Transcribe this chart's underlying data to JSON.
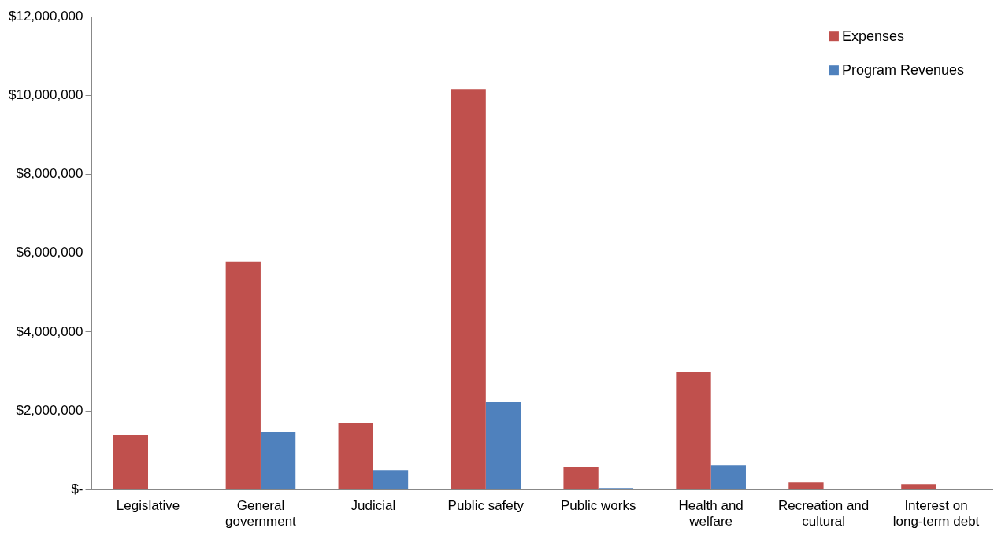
{
  "chart_data": {
    "type": "bar",
    "categories": [
      "Legislative",
      "General government",
      "Judicial",
      "Public safety",
      "Public works",
      "Health and welfare",
      "Recreation and cultural",
      "Interest on long-term debt"
    ],
    "series": [
      {
        "name": "Expenses",
        "color": "#c0504d",
        "values": [
          1380000,
          5780000,
          1680000,
          10160000,
          580000,
          2980000,
          180000,
          140000
        ]
      },
      {
        "name": "Program Revenues",
        "color": "#4f81bd",
        "values": [
          0,
          1460000,
          500000,
          2220000,
          40000,
          620000,
          0,
          0
        ]
      }
    ],
    "ylim": [
      0,
      12000000
    ],
    "yticks": [
      {
        "value": 0,
        "label": "$-"
      },
      {
        "value": 2000000,
        "label": "$2,000,000"
      },
      {
        "value": 4000000,
        "label": "$4,000,000"
      },
      {
        "value": 6000000,
        "label": "$6,000,000"
      },
      {
        "value": 8000000,
        "label": "$8,000,000"
      },
      {
        "value": 10000000,
        "label": "$10,000,000"
      },
      {
        "value": 12000000,
        "label": "$12,000,000"
      }
    ],
    "grid": false,
    "legend": "top right"
  }
}
